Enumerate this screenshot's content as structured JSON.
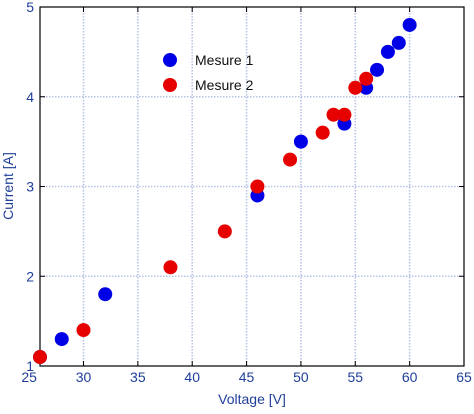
{
  "chart_data": {
    "type": "scatter",
    "xlabel": "Voltage [V]",
    "ylabel": "Current [A]",
    "xlim": [
      26,
      65
    ],
    "ylim": [
      1,
      5
    ],
    "x_ticks": [
      25,
      30,
      35,
      40,
      45,
      50,
      55,
      60,
      65
    ],
    "x_tick_labels": [
      "25",
      "30",
      "35",
      "40",
      "45",
      "50",
      "55",
      "60",
      "65"
    ],
    "y_ticks": [
      1,
      2,
      3,
      4,
      5
    ],
    "y_tick_labels": [
      "1",
      "2",
      "3",
      "4",
      "5"
    ],
    "grid": true,
    "grid_color": "#b9c3e6",
    "axis_text_color": "#1f3f9a",
    "legend_position": "top-left",
    "series": [
      {
        "name": "Mesure 1",
        "color": "#0000e6",
        "points": [
          {
            "x": 26,
            "y": 1.1
          },
          {
            "x": 28,
            "y": 1.3
          },
          {
            "x": 32,
            "y": 1.8
          },
          {
            "x": 46,
            "y": 2.9
          },
          {
            "x": 50,
            "y": 3.5
          },
          {
            "x": 54,
            "y": 3.7
          },
          {
            "x": 56,
            "y": 4.1
          },
          {
            "x": 57,
            "y": 4.3
          },
          {
            "x": 58,
            "y": 4.5
          },
          {
            "x": 59,
            "y": 4.6
          },
          {
            "x": 60,
            "y": 4.8
          }
        ]
      },
      {
        "name": "Mesure 2",
        "color": "#e60000",
        "points": [
          {
            "x": 26,
            "y": 1.1
          },
          {
            "x": 30,
            "y": 1.4
          },
          {
            "x": 38,
            "y": 2.1
          },
          {
            "x": 43,
            "y": 2.5
          },
          {
            "x": 46,
            "y": 3.0
          },
          {
            "x": 49,
            "y": 3.3
          },
          {
            "x": 52,
            "y": 3.6
          },
          {
            "x": 53,
            "y": 3.8
          },
          {
            "x": 54,
            "y": 3.8
          },
          {
            "x": 55,
            "y": 4.1
          },
          {
            "x": 56,
            "y": 4.2
          }
        ]
      }
    ]
  }
}
